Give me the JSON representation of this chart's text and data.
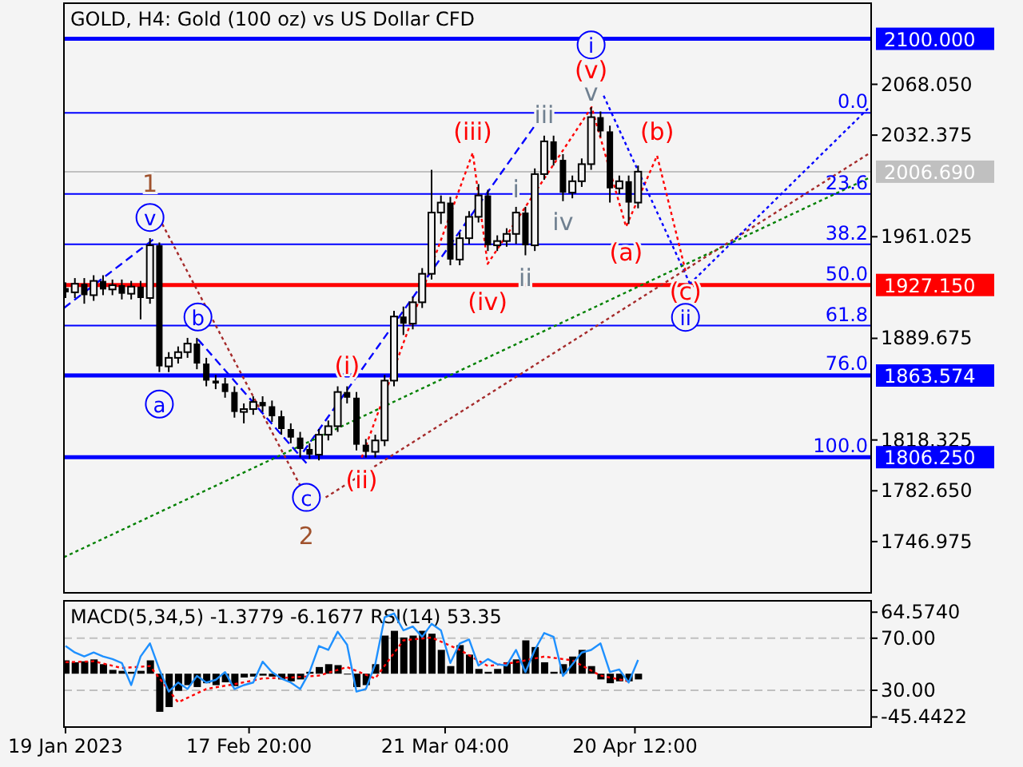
{
  "chart_data": [
    {
      "type": "candlestick",
      "title": "GOLD, H4:  Gold (100 oz) vs US Dollar CFD",
      "xlim": [
        "2023-01-19T06:00",
        "2023-05-28T06:00"
      ],
      "ylim": [
        1711,
        2125
      ],
      "tick_labels": "y",
      "yticks": [
        {
          "value": 2068.05,
          "label": "2068.050"
        },
        {
          "value": 2032.375,
          "label": "2032.375"
        },
        {
          "value": 1961.025,
          "label": "1961.025"
        },
        {
          "value": 1889.675,
          "label": "1889.675"
        },
        {
          "value": 1818.325,
          "label": "1818.325"
        },
        {
          "value": 1782.65,
          "label": "1782.650"
        },
        {
          "value": 1746.975,
          "label": "1746.975"
        }
      ],
      "x": [
        "2023-01-19T12:00",
        "2023-01-21T00:00",
        "2023-01-22T12:00",
        "2023-01-24T00:00",
        "2023-01-25T12:00",
        "2023-01-27T00:00",
        "2023-01-28T12:00",
        "2023-01-30T00:00",
        "2023-01-31T12:00",
        "2023-02-02T00:00",
        "2023-02-03T12:00",
        "2023-02-05T00:00",
        "2023-02-06T12:00",
        "2023-02-08T00:00",
        "2023-02-09T12:00",
        "2023-02-11T00:00",
        "2023-02-12T12:00",
        "2023-02-14T00:00",
        "2023-02-15T12:00",
        "2023-02-17T00:00",
        "2023-02-18T12:00",
        "2023-02-20T00:00",
        "2023-02-21T12:00",
        "2023-02-23T00:00",
        "2023-02-24T12:00",
        "2023-02-26T00:00",
        "2023-02-27T12:00",
        "2023-03-01T00:00",
        "2023-03-02T12:00",
        "2023-03-04T00:00",
        "2023-03-05T12:00",
        "2023-03-07T00:00",
        "2023-03-08T12:00",
        "2023-03-10T00:00",
        "2023-03-11T12:00",
        "2023-03-13T00:00",
        "2023-03-14T12:00",
        "2023-03-16T00:00",
        "2023-03-17T12:00",
        "2023-03-19T00:00",
        "2023-03-20T12:00",
        "2023-03-22T00:00",
        "2023-03-23T12:00",
        "2023-03-25T00:00",
        "2023-03-26T12:00",
        "2023-03-28T00:00",
        "2023-03-29T12:00",
        "2023-03-31T00:00",
        "2023-04-01T12:00",
        "2023-04-03T00:00",
        "2023-04-04T12:00",
        "2023-04-06T00:00",
        "2023-04-07T12:00",
        "2023-04-09T00:00",
        "2023-04-10T12:00",
        "2023-04-12T00:00",
        "2023-04-13T12:00",
        "2023-04-15T00:00",
        "2023-04-16T12:00",
        "2023-04-18T00:00",
        "2023-04-19T12:00",
        "2023-04-21T00:00"
      ],
      "ohlc": [
        [
          1925,
          1929,
          1918,
          1922
        ],
        [
          1922,
          1932,
          1918,
          1928
        ],
        [
          1928,
          1932,
          1914,
          1920
        ],
        [
          1920,
          1934,
          1916,
          1930
        ],
        [
          1930,
          1934,
          1920,
          1924
        ],
        [
          1924,
          1931,
          1920,
          1927
        ],
        [
          1927,
          1931,
          1917,
          1921
        ],
        [
          1921,
          1930,
          1917,
          1926
        ],
        [
          1926,
          1930,
          1903,
          1918
        ],
        [
          1918,
          1960,
          1914,
          1955
        ],
        [
          1955,
          1957,
          1866,
          1870
        ],
        [
          1870,
          1880,
          1866,
          1876
        ],
        [
          1876,
          1884,
          1872,
          1880
        ],
        [
          1880,
          1890,
          1876,
          1886
        ],
        [
          1886,
          1890,
          1868,
          1872
        ],
        [
          1872,
          1876,
          1856,
          1860
        ],
        [
          1860,
          1864,
          1854,
          1858
        ],
        [
          1858,
          1862,
          1848,
          1852
        ],
        [
          1852,
          1856,
          1834,
          1838
        ],
        [
          1838,
          1844,
          1830,
          1840
        ],
        [
          1840,
          1849,
          1836,
          1845
        ],
        [
          1845,
          1849,
          1838,
          1842
        ],
        [
          1842,
          1846,
          1831,
          1835
        ],
        [
          1835,
          1839,
          1822,
          1826
        ],
        [
          1826,
          1830,
          1816,
          1820
        ],
        [
          1820,
          1824,
          1806,
          1812
        ],
        [
          1812,
          1816,
          1805,
          1808
        ],
        [
          1808,
          1826,
          1804,
          1822
        ],
        [
          1822,
          1832,
          1818,
          1828
        ],
        [
          1828,
          1856,
          1824,
          1852
        ],
        [
          1852,
          1856,
          1844,
          1848
        ],
        [
          1848,
          1852,
          1811,
          1815
        ],
        [
          1815,
          1819,
          1806,
          1810
        ],
        [
          1810,
          1822,
          1806,
          1818
        ],
        [
          1818,
          1864,
          1814,
          1860
        ],
        [
          1860,
          1909,
          1856,
          1905
        ],
        [
          1905,
          1912,
          1892,
          1900
        ],
        [
          1900,
          1919,
          1896,
          1915
        ],
        [
          1915,
          1939,
          1911,
          1935
        ],
        [
          1935,
          2008,
          1931,
          1978
        ],
        [
          1978,
          1990,
          1970,
          1985
        ],
        [
          1985,
          1989,
          1941,
          1945
        ],
        [
          1945,
          1964,
          1941,
          1960
        ],
        [
          1960,
          1979,
          1956,
          1975
        ],
        [
          1975,
          1998,
          1971,
          1990
        ],
        [
          1990,
          1994,
          1951,
          1955
        ],
        [
          1955,
          1962,
          1951,
          1958
        ],
        [
          1958,
          1967,
          1954,
          1963
        ],
        [
          1963,
          1982,
          1956,
          1978
        ],
        [
          1978,
          1982,
          1948,
          1955
        ],
        [
          1955,
          2009,
          1951,
          2005
        ],
        [
          2005,
          2032,
          2001,
          2028
        ],
        [
          2028,
          2032,
          2011,
          2015
        ],
        [
          2015,
          2019,
          1986,
          1992
        ],
        [
          1992,
          2004,
          1988,
          2000
        ],
        [
          2000,
          2016,
          1996,
          2012
        ],
        [
          2012,
          2052,
          2008,
          2045
        ],
        [
          2045,
          2049,
          2031,
          2035
        ],
        [
          2035,
          2039,
          1985,
          1995
        ],
        [
          1995,
          2004,
          1991,
          2000
        ],
        [
          2000,
          2004,
          1970,
          1985
        ],
        [
          1985,
          2011,
          1981,
          2006.7
        ]
      ],
      "series": [
        {
          "type": "line",
          "color": "#0000ff",
          "line_style": "dashed",
          "x": [
            "2023-01-19T06:00",
            "2023-02-02T12:00"
          ],
          "values": [
            1911,
            1959
          ]
        },
        {
          "type": "line",
          "color": "#a52a2a",
          "line_style": "dotted",
          "x": [
            "2023-02-03T23:00",
            "2023-02-27T00:00"
          ],
          "values": [
            1970,
            1778
          ]
        },
        {
          "type": "line",
          "color": "#0000ff",
          "line_style": "dashed",
          "x": [
            "2023-02-09T16:00",
            "2023-02-27T00:00"
          ],
          "values": [
            1889,
            1802
          ]
        },
        {
          "type": "line",
          "color": "#ff0000",
          "line_style": "dotted",
          "x": [
            "2023-03-07T20:00",
            "2023-03-25T14:00",
            "2023-03-27T23:00",
            "2023-04-13T14:00",
            "2023-04-19T02:00",
            "2023-04-24T01:00",
            "2023-04-28T14:00"
          ],
          "values": [
            1806,
            2020,
            1942,
            2052,
            1968,
            2018,
            1937
          ]
        },
        {
          "type": "line",
          "color": "#0000ff",
          "line_style": "dashed",
          "x": [
            "2023-02-26T12:00",
            "2023-04-04T08:00"
          ],
          "values": [
            1810,
            2038
          ]
        },
        {
          "type": "line",
          "color": "#0000ff",
          "line_style": "dotted",
          "x": [
            "2023-04-15T12:00",
            "2023-04-29T07:00"
          ],
          "values": [
            2060,
            1928
          ]
        },
        {
          "type": "line",
          "color": "#008000",
          "line_style": "dotted",
          "x": [
            "2023-01-19T06:00",
            "2023-05-27T18:00"
          ],
          "values": [
            1736,
            2002
          ]
        },
        {
          "type": "line",
          "color": "#a52a2a",
          "line_style": "dotted",
          "x": [
            "2023-03-02T02:00",
            "2023-05-27T18:00"
          ],
          "values": [
            1778,
            2019
          ]
        },
        {
          "type": "line",
          "color": "#0000ff",
          "line_style": "dotted",
          "x": [
            "2023-04-29T07:00",
            "2023-05-27T18:00"
          ],
          "values": [
            1928,
            2051
          ]
        }
      ],
      "ref_lines": [
        {
          "axis": "y",
          "value": 2100,
          "label": "2100.000",
          "color": "#0000ff"
        },
        {
          "axis": "y",
          "value": 1927.15,
          "label": "1927.150",
          "color": "#ff0000"
        },
        {
          "axis": "y",
          "value": 1863.574,
          "label": "1863.574",
          "color": "#0000ff"
        },
        {
          "axis": "y",
          "value": 1806.25,
          "label": "1806.250",
          "color": "#0000ff"
        },
        {
          "axis": "y",
          "value": 2006.69,
          "label": "2006.690",
          "color": "#c0c0c0"
        },
        {
          "axis": "y",
          "value": 2048.05,
          "color": "#0000ff"
        },
        {
          "axis": "y",
          "value": 1991,
          "color": "#0000ff"
        },
        {
          "axis": "y",
          "value": 1955.7,
          "color": "#0000ff"
        },
        {
          "axis": "y",
          "value": 1898.6,
          "color": "#0000ff"
        },
        {
          "axis": "y",
          "value": 1864.3,
          "color": "#0000ff"
        }
      ],
      "annotations": [
        {
          "text": "1",
          "x": "2023-02-02T00:00",
          "y": 1960
        },
        {
          "text": "v",
          "x": "2023-02-02T00:00",
          "y": 1960
        },
        {
          "text": "b",
          "x": "2023-02-09T16:00",
          "y": 1889
        },
        {
          "text": "a",
          "x": "2023-02-03T12:00",
          "y": 1866
        },
        {
          "text": "c",
          "x": "2023-02-27T00:00",
          "y": 1778
        },
        {
          "text": "2",
          "x": "2023-02-27T00:00",
          "y": 1778
        },
        {
          "text": "(i)",
          "x": "2023-03-05T12:00",
          "y": 1856
        },
        {
          "text": "(ii)",
          "x": "2023-03-07T20:00",
          "y": 1806
        },
        {
          "text": "(iii)",
          "x": "2023-03-25T14:00",
          "y": 2020
        },
        {
          "text": "(iv)",
          "x": "2023-03-27T23:00",
          "y": 1942
        },
        {
          "text": "i",
          "x": "2023-04-01T12:00",
          "y": 1982
        },
        {
          "text": "ii",
          "x": "2023-04-03T00:00",
          "y": 1948
        },
        {
          "text": "iii",
          "x": "2023-04-06T00:00",
          "y": 2032
        },
        {
          "text": "iv",
          "x": "2023-04-09T00:00",
          "y": 1986
        },
        {
          "text": "v",
          "x": "2023-04-13T12:00",
          "y": 2052
        },
        {
          "text": "(v)",
          "x": "2023-04-13T12:00",
          "y": 2052
        },
        {
          "text": "i",
          "x": "2023-04-13T12:00",
          "y": 2052
        },
        {
          "text": "(b)",
          "x": "2023-04-24T01:00",
          "y": 2018
        },
        {
          "text": "(a)",
          "x": "2023-04-19T02:00",
          "y": 1968
        },
        {
          "text": "(c)",
          "x": "2023-04-28T14:00",
          "y": 1937
        },
        {
          "text": "ii",
          "x": "2023-04-28T14:00",
          "y": 1937
        },
        {
          "text": "0.0",
          "x": "2023-05-27T18:00",
          "y": 2048.05
        },
        {
          "text": "23.6",
          "x": "2023-05-27T18:00",
          "y": 1991
        },
        {
          "text": "38.2",
          "x": "2023-05-27T18:00",
          "y": 1955.7
        },
        {
          "text": "50.0",
          "x": "2023-05-27T18:00",
          "y": 1927.15
        },
        {
          "text": "61.8",
          "x": "2023-05-27T18:00",
          "y": 1898.6
        },
        {
          "text": "76.0",
          "x": "2023-05-27T18:00",
          "y": 1864.3
        },
        {
          "text": "100.0",
          "x": "2023-05-27T18:00",
          "y": 1806.25
        }
      ]
    },
    {
      "type": "bar",
      "title": "MACD(5,34,5) -1.3779 -6.1677 RSI(14) 53.35",
      "xlim": [
        "2023-01-19T06:00",
        "2023-05-28T06:00"
      ],
      "ylim": [
        -56,
        76.5
      ],
      "y2lim": [
        1.8,
        98.7
      ],
      "xticks": [
        {
          "value": "2023-01-19T12:00",
          "label": "19 Jan 2023"
        },
        {
          "value": "2023-02-17T20:00",
          "label": "17 Feb 20:00"
        },
        {
          "value": "2023-03-21T04:00",
          "label": "21 Mar 04:00"
        },
        {
          "value": "2023-04-20T12:00",
          "label": "20 Apr 12:00"
        }
      ],
      "yticks": [
        {
          "value": 64.574,
          "label": "64.5740"
        },
        {
          "value": -45.4422,
          "label": "-45.4422"
        }
      ],
      "y2ticks": [
        {
          "value": 70,
          "label": "70.00"
        },
        {
          "value": 30,
          "label": "30.00"
        }
      ],
      "ref_lines": [
        {
          "axis": "y2",
          "value": 70,
          "color": "#c0c0c0",
          "line_style": "dashed"
        },
        {
          "axis": "y2",
          "value": 30,
          "color": "#c0c0c0",
          "line_style": "dashed"
        }
      ],
      "x": [
        "2023-01-19T12:00",
        "2023-01-21T00:00",
        "2023-01-22T12:00",
        "2023-01-24T00:00",
        "2023-01-25T12:00",
        "2023-01-27T00:00",
        "2023-01-28T12:00",
        "2023-01-30T00:00",
        "2023-01-31T12:00",
        "2023-02-02T00:00",
        "2023-02-03T12:00",
        "2023-02-05T00:00",
        "2023-02-06T12:00",
        "2023-02-08T00:00",
        "2023-02-09T12:00",
        "2023-02-11T00:00",
        "2023-02-12T12:00",
        "2023-02-14T00:00",
        "2023-02-15T12:00",
        "2023-02-17T00:00",
        "2023-02-18T12:00",
        "2023-02-20T00:00",
        "2023-02-21T12:00",
        "2023-02-23T00:00",
        "2023-02-24T12:00",
        "2023-02-26T00:00",
        "2023-02-27T12:00",
        "2023-03-01T00:00",
        "2023-03-02T12:00",
        "2023-03-04T00:00",
        "2023-03-05T12:00",
        "2023-03-07T00:00",
        "2023-03-08T12:00",
        "2023-03-10T00:00",
        "2023-03-11T12:00",
        "2023-03-13T00:00",
        "2023-03-14T12:00",
        "2023-03-16T00:00",
        "2023-03-17T12:00",
        "2023-03-19T00:00",
        "2023-03-20T12:00",
        "2023-03-22T00:00",
        "2023-03-23T12:00",
        "2023-03-25T00:00",
        "2023-03-26T12:00",
        "2023-03-28T00:00",
        "2023-03-29T12:00",
        "2023-03-31T00:00",
        "2023-04-01T12:00",
        "2023-04-03T00:00",
        "2023-04-04T12:00",
        "2023-04-06T00:00",
        "2023-04-07T12:00",
        "2023-04-09T00:00",
        "2023-04-10T12:00",
        "2023-04-12T00:00",
        "2023-04-13T12:00",
        "2023-04-15T00:00",
        "2023-04-16T12:00",
        "2023-04-18T00:00",
        "2023-04-19T12:00",
        "2023-04-21T00:00"
      ],
      "series": [
        {
          "color": "#000000",
          "values": [
            14,
            12,
            13,
            15,
            10,
            4,
            3,
            2,
            3,
            14,
            -40,
            -35,
            -18,
            -12,
            -14,
            -10,
            -12,
            -9,
            -13,
            -4,
            -3,
            -2,
            -3,
            -6,
            -8,
            -6,
            2,
            7,
            10,
            9,
            0,
            -14,
            -12,
            10,
            40,
            45,
            38,
            40,
            45,
            42,
            25,
            8,
            30,
            20,
            5,
            2,
            5,
            12,
            15,
            35,
            28,
            12,
            2,
            10,
            18,
            25,
            8,
            -6,
            -10,
            -8,
            -8,
            -6
          ]
        },
        {
          "type": "line",
          "color": "#ff0000",
          "line_style": "dotted",
          "x": [
            "2023-01-19T12:00",
            "2023-01-24T00:00",
            "2023-01-28T12:00",
            "2023-02-02T00:00",
            "2023-02-06T12:00",
            "2023-02-11T00:00",
            "2023-02-15T12:00",
            "2023-02-20T00:00",
            "2023-02-24T12:00",
            "2023-03-01T00:00",
            "2023-03-05T12:00",
            "2023-03-10T00:00",
            "2023-03-14T12:00",
            "2023-03-19T00:00",
            "2023-03-23T12:00",
            "2023-03-28T00:00",
            "2023-04-01T12:00",
            "2023-04-06T00:00",
            "2023-04-10T12:00",
            "2023-04-15T00:00",
            "2023-04-19T12:00"
          ],
          "values": [
            12,
            13,
            6,
            8,
            -30,
            -16,
            -11,
            -5,
            -4,
            -2,
            7,
            -5,
            35,
            38,
            25,
            8,
            12,
            18,
            14,
            -2,
            -8
          ]
        },
        {
          "type": "line",
          "axis": "y2",
          "color": "#1e90ff",
          "values": [
            64,
            59,
            56,
            59,
            56,
            54,
            51,
            34,
            56,
            66,
            46,
            29,
            36,
            31,
            41,
            36,
            38,
            44,
            31,
            34,
            36,
            52,
            44,
            39,
            36,
            31,
            44,
            64,
            61,
            75,
            65,
            29,
            31,
            50,
            86,
            89,
            76,
            79,
            71,
            81,
            76,
            51,
            66,
            69,
            49,
            54,
            50,
            49,
            61,
            44,
            61,
            74,
            71,
            41,
            50,
            59,
            61,
            66,
            44,
            46,
            36,
            53.35
          ]
        }
      ]
    }
  ]
}
